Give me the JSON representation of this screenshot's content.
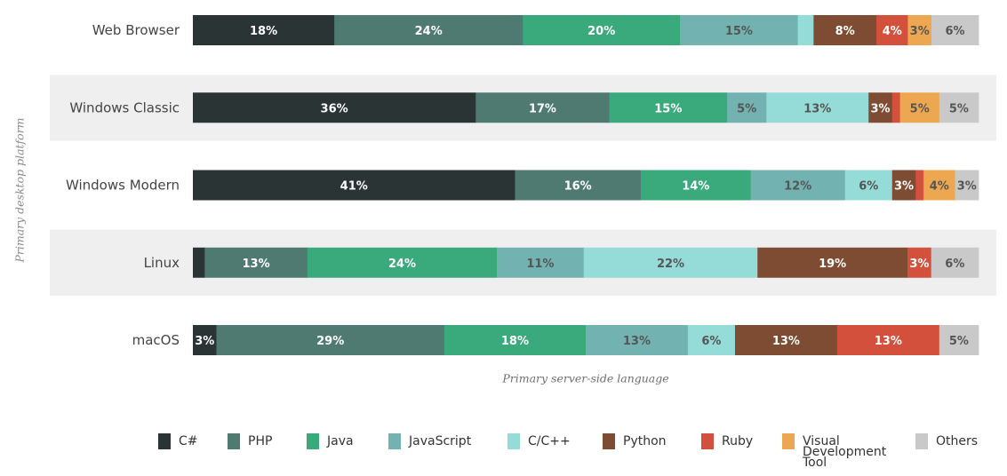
{
  "chart_data": {
    "type": "bar",
    "orientation": "horizontal",
    "stacked": true,
    "ylabel": "Primary desktop platform",
    "xlabel": "Primary server-side language",
    "categories": [
      "Web Browser",
      "Windows Classic",
      "Windows Modern",
      "Linux",
      "macOS"
    ],
    "series": [
      {
        "name": "C#",
        "color": "#2b3434",
        "values": [
          18,
          36,
          41,
          1.5,
          3
        ],
        "labels": [
          "18%",
          "36%",
          "41%",
          "",
          "3%"
        ]
      },
      {
        "name": "PHP",
        "color": "#4f7a72",
        "values": [
          24,
          17,
          16,
          13,
          29
        ],
        "labels": [
          "24%",
          "17%",
          "16%",
          "13%",
          "29%"
        ]
      },
      {
        "name": "Java",
        "color": "#3aa97b",
        "values": [
          20,
          15,
          14,
          24,
          18
        ],
        "labels": [
          "20%",
          "15%",
          "14%",
          "24%",
          "18%"
        ]
      },
      {
        "name": "JavaScript",
        "color": "#72b3b2",
        "values": [
          15,
          5,
          12,
          11,
          13
        ],
        "labels": [
          "15%",
          "5%",
          "12%",
          "11%",
          "13%"
        ]
      },
      {
        "name": "C/C++",
        "color": "#95dcd8",
        "values": [
          2,
          13,
          6,
          22,
          6
        ],
        "labels": [
          "",
          "13%",
          "6%",
          "22%",
          "6%"
        ]
      },
      {
        "name": "Python",
        "color": "#7d4c33",
        "values": [
          8,
          3,
          3,
          19,
          13
        ],
        "labels": [
          "8%",
          "3%",
          "3%",
          "19%",
          "13%"
        ]
      },
      {
        "name": "Ruby",
        "color": "#d3503c",
        "values": [
          4,
          1,
          1,
          3,
          13
        ],
        "labels": [
          "4%",
          "",
          "",
          "3%",
          "13%"
        ]
      },
      {
        "name": "Visual Development Tool",
        "color": "#eda750",
        "values": [
          3,
          5,
          4,
          0,
          0
        ],
        "labels": [
          "3%",
          "5%",
          "4%",
          "",
          ""
        ]
      },
      {
        "name": "Others",
        "color": "#c9c9c9",
        "values": [
          6,
          5,
          3,
          6,
          5
        ],
        "labels": [
          "6%",
          "5%",
          "3%",
          "6%",
          "5%"
        ]
      }
    ],
    "legend": {
      "position": "bottom",
      "entries": [
        "C#",
        "PHP",
        "Java",
        "JavaScript",
        "C/C++",
        "Python",
        "Ruby",
        "Visual Development Tool",
        "Others"
      ]
    },
    "grid": false
  }
}
